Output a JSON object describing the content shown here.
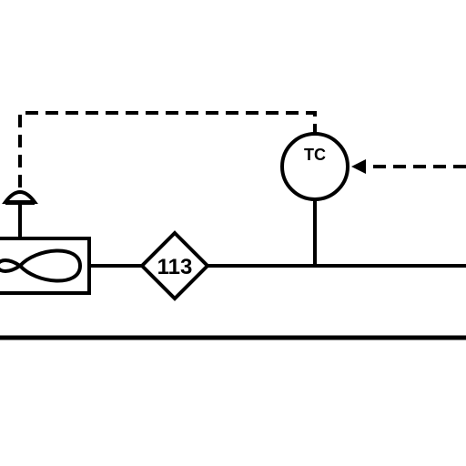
{
  "diagram": {
    "instrument_tag": "TC",
    "diamond_label": "113"
  },
  "colors": {
    "line": "#000000",
    "background": "#ffffff"
  }
}
